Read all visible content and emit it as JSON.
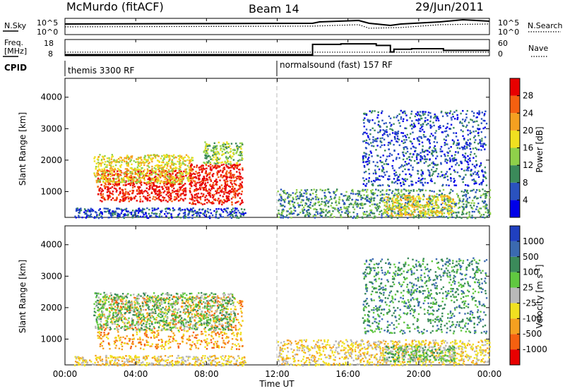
{
  "header": {
    "title": "McMurdo (fitACF)",
    "beam": "Beam 14",
    "date": "29/Jun/2011"
  },
  "time_axis": {
    "label": "Time UT",
    "range_hours": [
      0,
      24
    ],
    "ticks": [
      {
        "hour": 0,
        "label": "00:00"
      },
      {
        "hour": 4,
        "label": "04:00"
      },
      {
        "hour": 8,
        "label": "08:00"
      },
      {
        "hour": 12,
        "label": "12:00"
      },
      {
        "hour": 16,
        "label": "16:00"
      },
      {
        "hour": 20,
        "label": "20:00"
      },
      {
        "hour": 24,
        "label": "00:00"
      }
    ]
  },
  "noise_panel": {
    "left_label": "N.Sky",
    "right_label": "N.Search",
    "left_ticks": [
      "10^5",
      "10^0"
    ],
    "right_ticks": [
      "10^5",
      "10^0"
    ]
  },
  "freq_panel": {
    "left_label_1": "Freq.",
    "left_label_2": "[MHz]",
    "right_label": "Nave",
    "left_ticks": [
      "18",
      "8"
    ],
    "right_ticks": [
      "60",
      "0"
    ],
    "freq_mhz": [
      {
        "t": 0,
        "v": 10.2
      },
      {
        "t": 14,
        "v": 10.2
      }
    ],
    "nave": [
      {
        "t": 0,
        "v": 4
      },
      {
        "t": 14,
        "v": 4
      },
      {
        "t": 14,
        "v": 42
      },
      {
        "t": 15.6,
        "v": 42
      },
      {
        "t": 15.6,
        "v": 44
      },
      {
        "t": 17.6,
        "v": 44
      },
      {
        "t": 17.6,
        "v": 38
      },
      {
        "t": 18.4,
        "v": 38
      },
      {
        "t": 18.4,
        "v": 14
      },
      {
        "t": 18.6,
        "v": 14
      },
      {
        "t": 18.6,
        "v": 24
      },
      {
        "t": 19.6,
        "v": 24
      },
      {
        "t": 19.6,
        "v": 26
      },
      {
        "t": 21.4,
        "v": 26
      },
      {
        "t": 21.4,
        "v": 20
      },
      {
        "t": 24,
        "v": 20
      }
    ]
  },
  "cpid": {
    "label": "CPID",
    "segments": [
      {
        "start_hour": 0,
        "text": "themis 3300 RF"
      },
      {
        "start_hour": 12,
        "text": "normalsound (fast) 157 RF"
      }
    ]
  },
  "chart_data": [
    {
      "type": "heatmap",
      "name": "power",
      "xlabel": "",
      "ylabel": "Slant Range [km]",
      "ylim": [
        180,
        4600
      ],
      "yticks": [
        1000,
        2000,
        3000,
        4000
      ],
      "colorbar_label": "Power [dB]",
      "colorbar_ticks": [
        "4",
        "8",
        "12",
        "16",
        "20",
        "24",
        "28"
      ],
      "colorbar_range": [
        0,
        32
      ],
      "colors": [
        "#0000e8",
        "#2a52be",
        "#3b8a5a",
        "#8fd04a",
        "#f0e020",
        "#f5a020",
        "#f56010",
        "#e80000"
      ],
      "regions": [
        {
          "t0": 1.8,
          "t1": 6.8,
          "r0": 700,
          "r1": 1700,
          "level": 7
        },
        {
          "t0": 1.6,
          "t1": 7.2,
          "r0": 1300,
          "r1": 2200,
          "level": 4
        },
        {
          "t0": 7.0,
          "t1": 10.0,
          "r0": 600,
          "r1": 1900,
          "level": 7
        },
        {
          "t0": 7.8,
          "t1": 10.0,
          "r0": 1900,
          "r1": 2600,
          "level": 3
        },
        {
          "t0": 0.5,
          "t1": 10.2,
          "r0": 180,
          "r1": 500,
          "level": 1
        },
        {
          "t0": 12.0,
          "t1": 24.0,
          "r0": 180,
          "r1": 1100,
          "level": 2
        },
        {
          "t0": 18.0,
          "t1": 22.0,
          "r0": 250,
          "r1": 900,
          "level": 4
        },
        {
          "t0": 16.8,
          "t1": 23.8,
          "r0": 1200,
          "r1": 3600,
          "level": 1
        }
      ]
    },
    {
      "type": "heatmap",
      "name": "velocity",
      "xlabel": "Time UT",
      "ylabel": "Slant Range [km]",
      "ylim": [
        180,
        4600
      ],
      "yticks": [
        1000,
        2000,
        3000,
        4000
      ],
      "colorbar_label": "Velocity [m s^-1]",
      "colorbar_ticks": [
        "1000",
        "500",
        "100",
        "25",
        "-25",
        "-100",
        "-500",
        "-1000"
      ],
      "colors": [
        "#2040c0",
        "#3b6ab0",
        "#3b8a5a",
        "#60c840",
        "#b8b8b8",
        "#f0e020",
        "#f5a020",
        "#f56010",
        "#e80000"
      ],
      "regions": [
        {
          "t0": 1.8,
          "t1": 10.0,
          "r0": 700,
          "r1": 2400,
          "level": 6
        },
        {
          "t0": 1.6,
          "t1": 9.6,
          "r0": 1300,
          "r1": 2500,
          "level": 3
        },
        {
          "t0": 0.5,
          "t1": 10.2,
          "r0": 180,
          "r1": 500,
          "level": 5
        },
        {
          "t0": 12.0,
          "t1": 24.0,
          "r0": 180,
          "r1": 1000,
          "level": 5
        },
        {
          "t0": 18.0,
          "t1": 22.0,
          "r0": 300,
          "r1": 800,
          "level": 3
        },
        {
          "t0": 16.8,
          "t1": 23.8,
          "r0": 1200,
          "r1": 3600,
          "level": 2
        }
      ]
    }
  ]
}
